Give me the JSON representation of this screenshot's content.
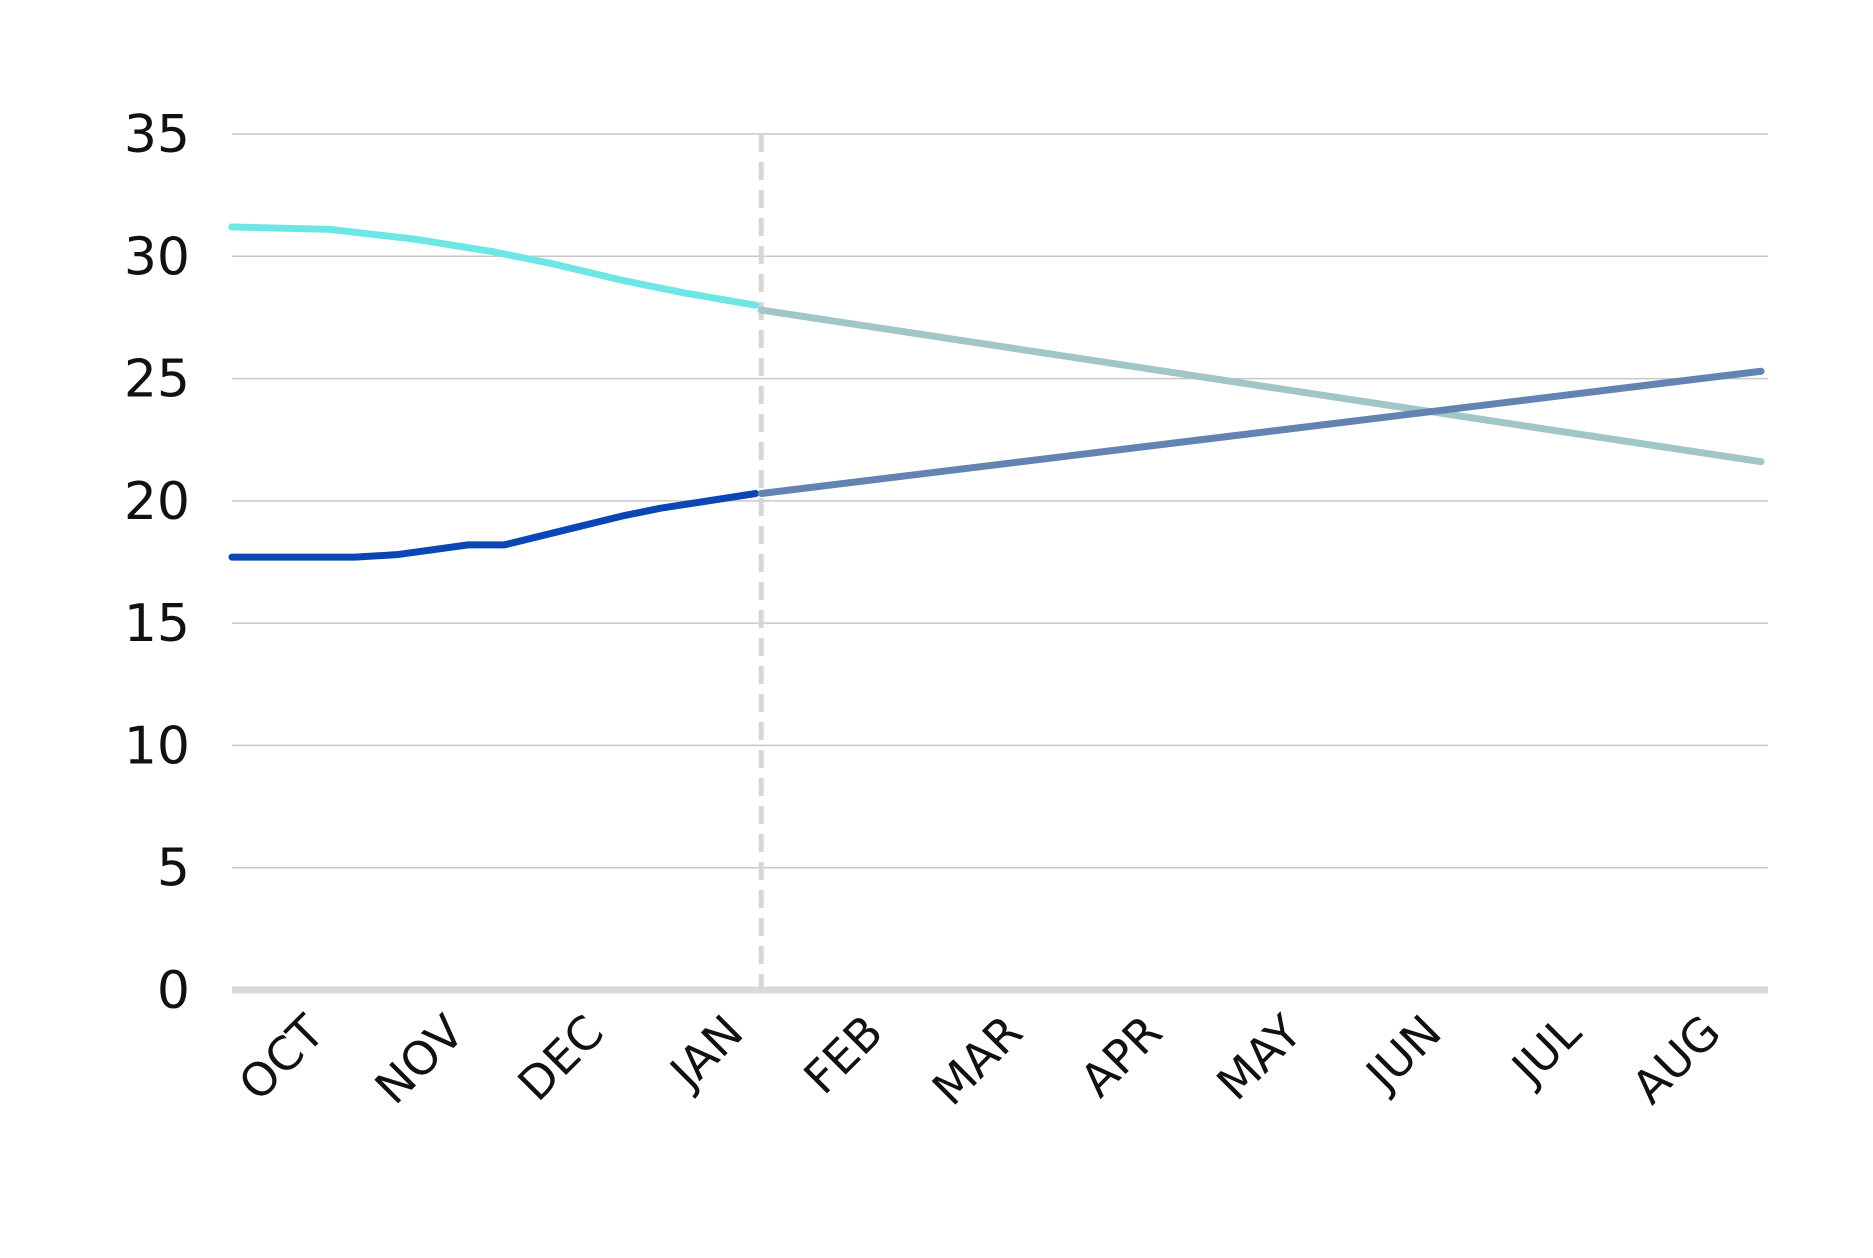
{
  "chart_data": {
    "type": "line",
    "categories": [
      "OCT",
      "NOV",
      "DEC",
      "JAN",
      "FEB",
      "MAR",
      "APR",
      "MAY",
      "JUN",
      "JUL",
      "AUG"
    ],
    "xlim": [
      0,
      11
    ],
    "ylim": [
      0,
      35
    ],
    "yticks": [
      0,
      5,
      10,
      15,
      20,
      25,
      30,
      35
    ],
    "grid": true,
    "divider_x": 3.79,
    "series": [
      {
        "color": "#6ee6e6",
        "x": [
          0,
          0.7,
          1.31,
          1.86,
          2.29,
          2.81,
          3.24,
          3.75
        ],
        "values": [
          31.2,
          31.1,
          30.7,
          30.2,
          29.7,
          29.0,
          28.5,
          28.0
        ]
      },
      {
        "color": "#a0c6c6",
        "x": [
          3.79,
          10.95
        ],
        "values": [
          27.8,
          21.6
        ]
      },
      {
        "color": "#0a47b5",
        "x": [
          0,
          0.88,
          1.18,
          1.69,
          1.95,
          2.38,
          2.81,
          3.07,
          3.41,
          3.75
        ],
        "values": [
          17.7,
          17.7,
          17.8,
          18.2,
          18.2,
          18.8,
          19.4,
          19.7,
          20.0,
          20.3
        ]
      },
      {
        "color": "#6383b1",
        "x": [
          3.79,
          10.95
        ],
        "values": [
          20.3,
          25.3
        ]
      }
    ]
  }
}
